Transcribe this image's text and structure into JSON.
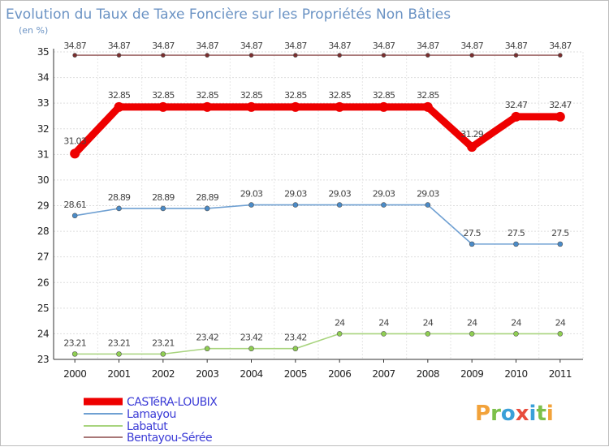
{
  "chart_data": {
    "type": "line",
    "title": "Evolution du Taux de Taxe Foncière sur les Propriétés Non Bâties",
    "ylabel": "(en %)",
    "xlabel": "",
    "x": [
      "2000",
      "2001",
      "2002",
      "2003",
      "2004",
      "2005",
      "2006",
      "2007",
      "2008",
      "2009",
      "2010",
      "2011"
    ],
    "ylim": [
      23,
      35
    ],
    "yticks": [
      23,
      24,
      25,
      26,
      27,
      28,
      29,
      30,
      31,
      32,
      33,
      34,
      35
    ],
    "grid": true,
    "series": [
      {
        "name": "CASTéRA-LOUBIX",
        "color": "#ee0000",
        "values": [
          31.03,
          32.85,
          32.85,
          32.85,
          32.85,
          32.85,
          32.85,
          32.85,
          32.85,
          31.29,
          32.47,
          32.47
        ],
        "labels": [
          "31.03",
          "32.85",
          "32.85",
          "32.85",
          "32.85",
          "32.85",
          "32.85",
          "32.85",
          "32.85",
          "31.29",
          "32.47",
          "32.47"
        ]
      },
      {
        "name": "Lamayou",
        "color": "#6fa0d2",
        "values": [
          28.61,
          28.89,
          28.89,
          28.89,
          29.03,
          29.03,
          29.03,
          29.03,
          29.03,
          27.5,
          27.5,
          27.5
        ],
        "labels": [
          "28.61",
          "28.89",
          "28.89",
          "28.89",
          "29.03",
          "29.03",
          "29.03",
          "29.03",
          "29.03",
          "27.5",
          "27.5",
          "27.5"
        ]
      },
      {
        "name": "Labatut",
        "color": "#a8d47e",
        "values": [
          23.21,
          23.21,
          23.21,
          23.42,
          23.42,
          23.42,
          24,
          24,
          24,
          24,
          24,
          24
        ],
        "labels": [
          "23.21",
          "23.21",
          "23.21",
          "23.42",
          "23.42",
          "23.42",
          "24",
          "24",
          "24",
          "24",
          "24",
          "24"
        ]
      },
      {
        "name": "Bentayou-Sérée",
        "color": "#8c4a4a",
        "values": [
          34.87,
          34.87,
          34.87,
          34.87,
          34.87,
          34.87,
          34.87,
          34.87,
          34.87,
          34.87,
          34.87,
          34.87
        ],
        "labels": [
          "34.87",
          "34.87",
          "34.87",
          "34.87",
          "34.87",
          "34.87",
          "34.87",
          "34.87",
          "34.87",
          "34.87",
          "34.87",
          "34.87"
        ]
      }
    ]
  },
  "brand": {
    "name": "Prox",
    "sep": "i",
    "end": "ti"
  },
  "colors": {
    "title": "#6b93c4",
    "legend_text": "#3b3bd6"
  }
}
